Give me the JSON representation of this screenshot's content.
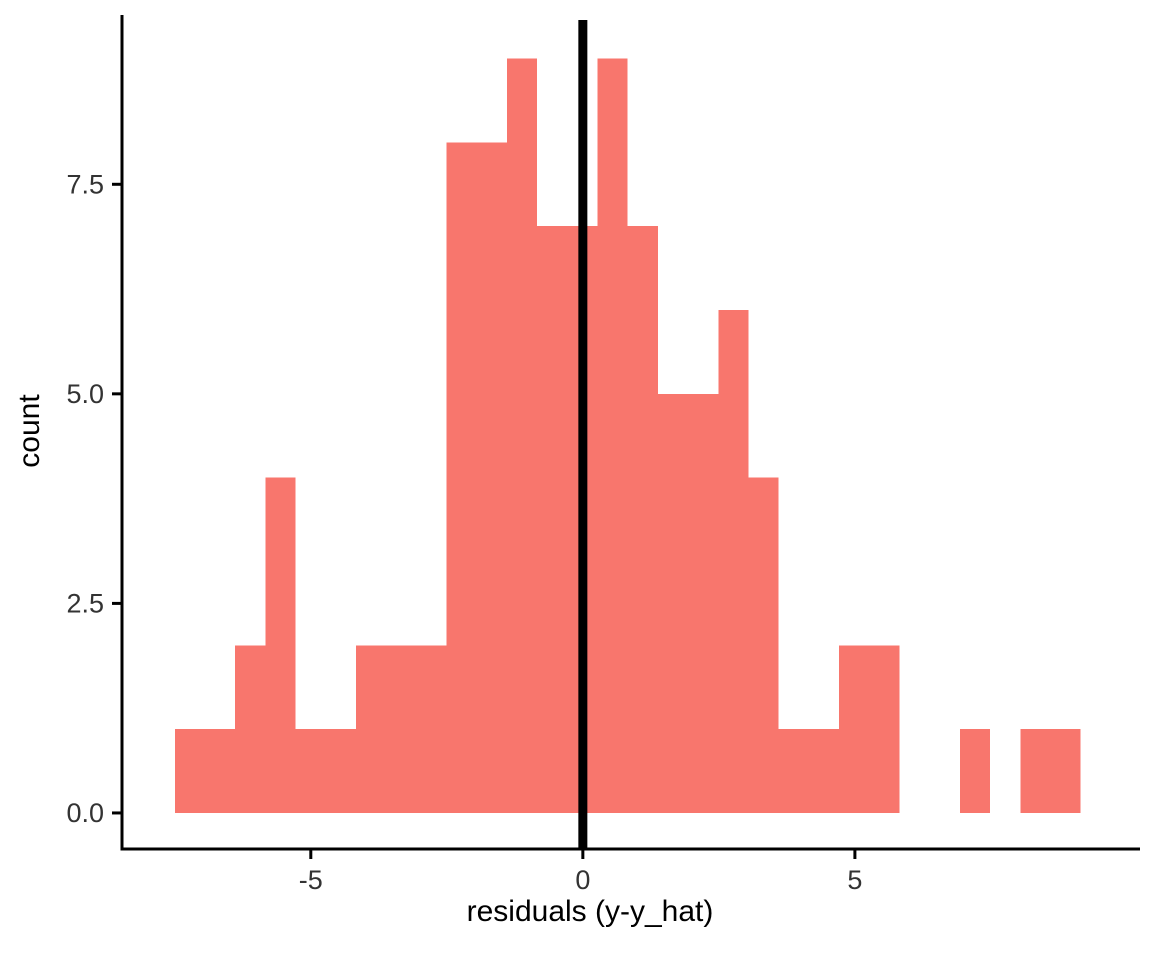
{
  "chart_data": {
    "type": "bar",
    "subtype": "histogram",
    "xlabel": "residuals (y-y_hat)",
    "ylabel": "count",
    "bin_start": -7.5,
    "bin_width": 0.555,
    "counts": [
      1,
      1,
      2,
      4,
      1,
      1,
      2,
      2,
      2,
      8,
      8,
      9,
      7,
      7,
      9,
      7,
      5,
      5,
      6,
      4,
      1,
      1,
      2,
      2,
      0,
      0,
      1,
      0,
      1,
      1
    ],
    "total_count": 100,
    "vline_x": 0,
    "x_ticks": [
      {
        "value": -5,
        "label": "-5"
      },
      {
        "value": 0,
        "label": "0"
      },
      {
        "value": 5,
        "label": "5"
      }
    ],
    "y_ticks": [
      {
        "value": 0,
        "label": "0.0"
      },
      {
        "value": 2.5,
        "label": "2.5"
      },
      {
        "value": 5,
        "label": "5.0"
      },
      {
        "value": 7.5,
        "label": "7.5"
      }
    ],
    "xlim": [
      -8.47,
      10.24
    ],
    "ylim": [
      -0.43,
      9.46
    ],
    "grid": false,
    "legend": "none",
    "colors": {
      "bar": "#F8766D",
      "vline": "#000000",
      "axis": "#000000",
      "tick_label": "#333333",
      "background": "#FFFFFF"
    }
  }
}
